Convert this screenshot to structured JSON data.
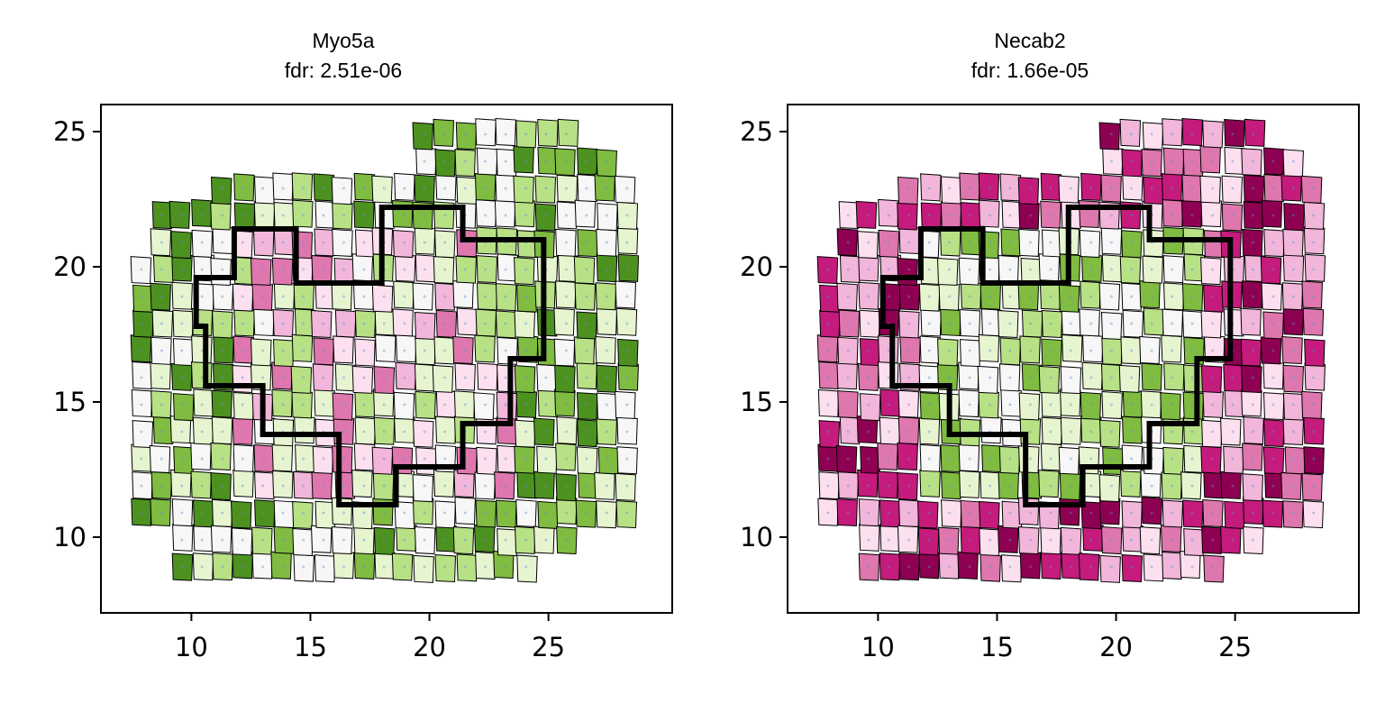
{
  "figure": {
    "background": "#ffffff"
  },
  "chart_data": [
    {
      "type": "heatmap",
      "title": "Myo5a",
      "subtitle": "fdr: 2.51e-06",
      "xlabel": "",
      "ylabel": "",
      "xlim": [
        6.2,
        30.2
      ],
      "ylim": [
        7.2,
        26
      ],
      "xticks": [
        10,
        15,
        20,
        25
      ],
      "yticks": [
        10,
        15,
        20,
        25
      ],
      "colormap": "PiYG",
      "grid": false,
      "legend": "none",
      "description_of_marks": "Voronoi-like tiles over spot positions colored by gene expression; thick black boundary outlines a region"
    },
    {
      "type": "heatmap",
      "title": "Necab2",
      "subtitle": "fdr: 1.66e-05",
      "xlabel": "",
      "ylabel": "",
      "xlim": [
        6.2,
        30.2
      ],
      "ylim": [
        7.2,
        26
      ],
      "xticks": [
        10,
        15,
        20,
        25
      ],
      "yticks": [
        10,
        15,
        20,
        25
      ],
      "colormap": "PiYG",
      "grid": false,
      "legend": "none",
      "description_of_marks": "Voronoi-like tiles over spot positions colored by gene expression; thick black boundary outlines a region"
    }
  ]
}
